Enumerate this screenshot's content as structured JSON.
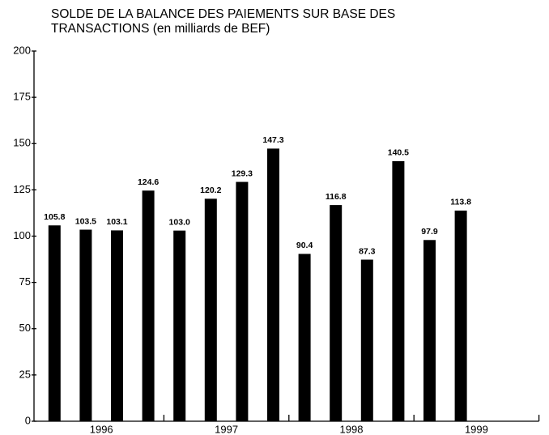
{
  "chart_data": {
    "type": "bar",
    "title": "SOLDE DE LA BALANCE DES PAIEMENTS SUR BASE DES TRANSACTIONS (en milliards de BEF)",
    "categories": [
      null,
      null,
      null,
      null,
      null,
      null,
      null,
      null,
      null,
      null,
      null,
      null,
      null,
      null
    ],
    "year_labels": [
      "1996",
      "1997",
      "1998",
      "1999"
    ],
    "values": [
      105.8,
      103.5,
      103.1,
      124.6,
      103.0,
      120.2,
      129.3,
      147.3,
      90.4,
      116.8,
      87.3,
      140.5,
      97.9,
      113.8
    ],
    "value_labels": [
      "105.8",
      "103.5",
      "103.1",
      "124.6",
      "103.0",
      "120.2",
      "129.3",
      "147.3",
      "90.4",
      "116.8",
      "87.3",
      "140.5",
      "97.9",
      "113.8"
    ],
    "color": "#000000",
    "ylim": [
      0,
      200
    ],
    "yticks": [
      0,
      25,
      50,
      75,
      100,
      125,
      150,
      175,
      200
    ],
    "grid": false
  }
}
